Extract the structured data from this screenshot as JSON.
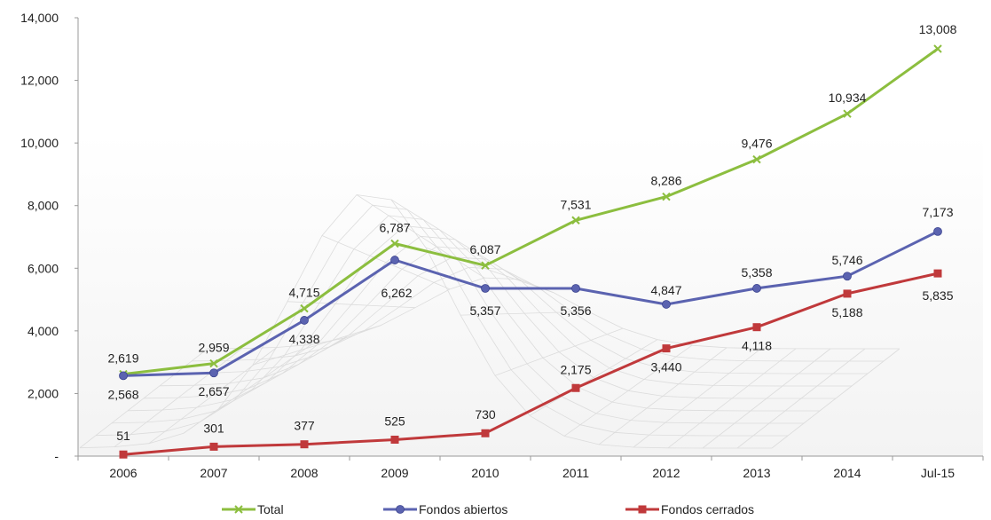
{
  "chart_data": {
    "type": "line",
    "categories": [
      "2006",
      "2007",
      "2008",
      "2009",
      "2010",
      "2011",
      "2012",
      "2013",
      "2014",
      "Jul-15"
    ],
    "ylim": [
      0,
      14000
    ],
    "yticks": [
      "-",
      "2,000",
      "4,000",
      "6,000",
      "8,000",
      "10,000",
      "12,000",
      "14,000"
    ],
    "grid": false,
    "legend_position": "bottom",
    "series": [
      {
        "name": "Total",
        "color": "#8cbe3f",
        "marker": "x",
        "values": [
          2619,
          2959,
          4715,
          6787,
          6087,
          7531,
          8286,
          9476,
          10934,
          13008
        ],
        "labels": [
          "2,619",
          "2,959",
          "4,715",
          "6,787",
          "6,087",
          "7,531",
          "8,286",
          "9,476",
          "10,934",
          "13,008"
        ]
      },
      {
        "name": "Fondos abiertos",
        "color": "#5b63b0",
        "marker": "circle",
        "values": [
          2568,
          2657,
          4338,
          6262,
          5357,
          5356,
          4847,
          5358,
          5746,
          7173
        ],
        "labels": [
          "2,568",
          "2,657",
          "4,338",
          "6,262",
          "5,357",
          "5,356",
          "4,847",
          "5,358",
          "5,746",
          "7,173"
        ]
      },
      {
        "name": "Fondos cerrados",
        "color": "#c0393b",
        "marker": "square",
        "values": [
          51,
          301,
          377,
          525,
          730,
          2175,
          3440,
          4118,
          5188,
          5835
        ],
        "labels": [
          "51",
          "301",
          "377",
          "525",
          "730",
          "2,175",
          "3,440",
          "4,118",
          "5,188",
          "5,835"
        ]
      }
    ]
  }
}
